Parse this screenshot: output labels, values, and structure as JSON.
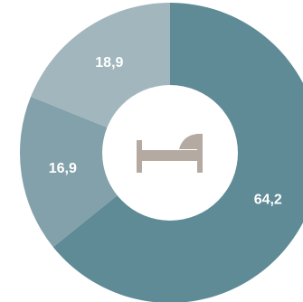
{
  "chart_data": {
    "type": "pie",
    "style": "donut",
    "center_icon": "bed-icon",
    "slices": [
      {
        "label": "64,2",
        "value": 64.2,
        "color": "#5f8b96"
      },
      {
        "label": "16,9",
        "value": 16.9,
        "color": "#83a1aa"
      },
      {
        "label": "18,9",
        "value": 18.9,
        "color": "#a2b6bd"
      }
    ],
    "colors": {
      "icon": "#b5aaa1",
      "hole": "#ffffff"
    }
  }
}
